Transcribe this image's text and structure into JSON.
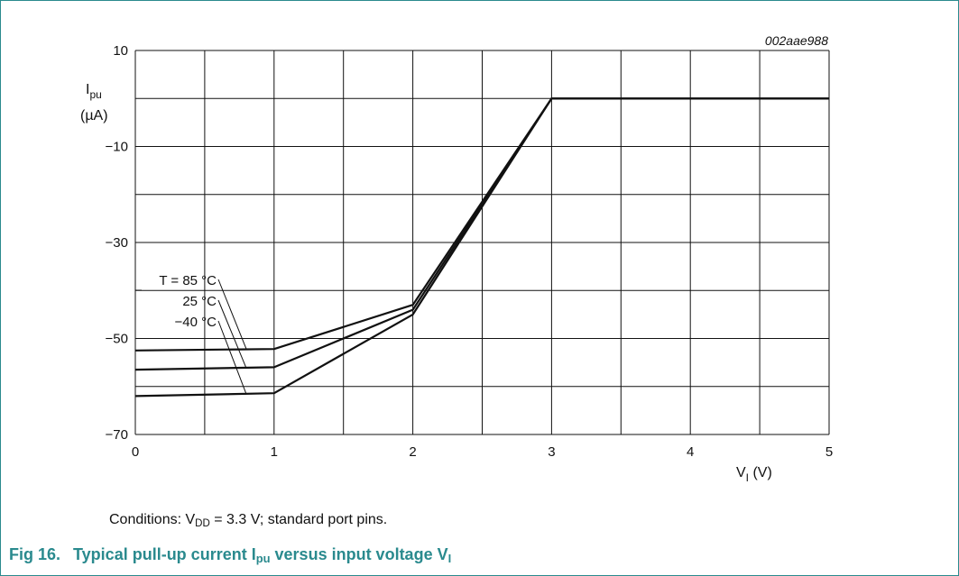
{
  "chart_data": {
    "type": "line",
    "code": "002aae988",
    "xlabel": {
      "symbol": "V",
      "sub": "I",
      "unit": "(V)"
    },
    "ylabel": {
      "symbol": "I",
      "sub": "pu",
      "unit": "(µA)"
    },
    "xlim": [
      0,
      5
    ],
    "ylim": [
      -70,
      10
    ],
    "xticks": [
      "0",
      "1",
      "2",
      "3",
      "4",
      "5"
    ],
    "yticks": [
      {
        "v": 10,
        "label": "10"
      },
      {
        "v": -10,
        "label": "−10"
      },
      {
        "v": -30,
        "label": "−30"
      },
      {
        "v": -50,
        "label": "−50"
      },
      {
        "v": -70,
        "label": "−70"
      }
    ],
    "x_grid_step": 0.5,
    "y_grid_step": 10,
    "grid": true,
    "series": [
      {
        "name": "T = 85 °C",
        "x": [
          0,
          1,
          2,
          3,
          5
        ],
        "y": [
          -52.5,
          -52.2,
          -43.0,
          0,
          0
        ]
      },
      {
        "name": "25 °C",
        "x": [
          0,
          1,
          2,
          3,
          5
        ],
        "y": [
          -56.5,
          -56.0,
          -44.0,
          0,
          0
        ]
      },
      {
        "name": "−40 °C",
        "x": [
          0,
          1,
          2,
          3,
          5
        ],
        "y": [
          -62.0,
          -61.4,
          -45.0,
          0,
          0
        ]
      }
    ],
    "annotation_anchor": [
      0.8,
      -52.2,
      0.8,
      -56.2,
      0.8,
      -61.6
    ]
  },
  "conditions": {
    "prefix": "Conditions: V",
    "sub": "DD",
    "suffix": " = 3.3 V; standard port pins."
  },
  "caption": {
    "fig_label": "Fig 16.",
    "text_a": "Typical pull-up current I",
    "sub_a": "pu",
    "text_b": " versus input voltage V",
    "sub_b": "I"
  }
}
